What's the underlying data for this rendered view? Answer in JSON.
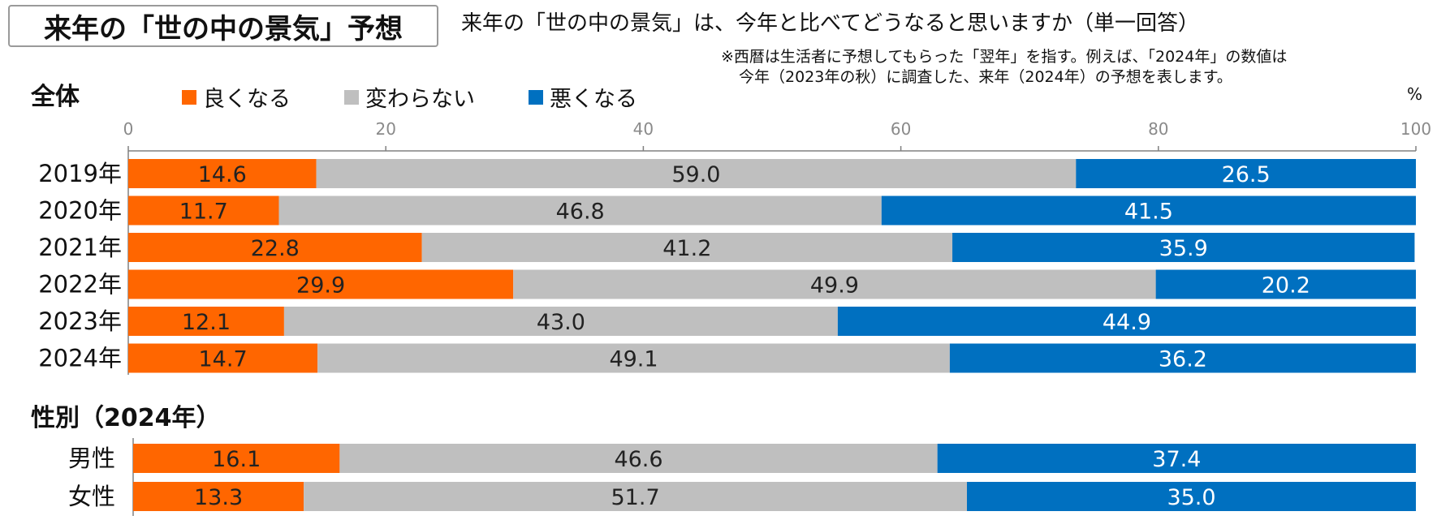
{
  "header": {
    "title": "来年の「世の中の景気」予想",
    "question": "来年の「世の中の景気」は、今年と比べてどうなると思いますか（単一回答）",
    "note_line1": "※西暦は生活者に予想してもらった「翌年」を指す。例えば、「2024年」の数値は",
    "note_line2": "今年（2023年の秋）に調査した、来年（2024年）の予想を表します。"
  },
  "sections": {
    "overall_label": "全体",
    "gender_label": "性別（2024年）"
  },
  "unit_label": "%",
  "colors": {
    "good": "#FF6600",
    "same": "#BFBFBF",
    "bad": "#0070C0",
    "axis": "#808080"
  },
  "chart_data": [
    {
      "type": "bar",
      "orientation": "horizontal",
      "stacked": true,
      "title": "全体",
      "xlim": [
        0,
        100
      ],
      "xticks": [
        0,
        20,
        40,
        60,
        80,
        100
      ],
      "xlabel": "%",
      "legend": [
        "良くなる",
        "変わらない",
        "悪くなる"
      ],
      "legend_position": "top",
      "categories": [
        "2019年",
        "2020年",
        "2021年",
        "2022年",
        "2023年",
        "2024年"
      ],
      "series": [
        {
          "name": "良くなる",
          "values": [
            14.6,
            11.7,
            22.8,
            29.9,
            12.1,
            14.7
          ]
        },
        {
          "name": "変わらない",
          "values": [
            59.0,
            46.8,
            41.2,
            49.9,
            43.0,
            49.1
          ]
        },
        {
          "name": "悪くなる",
          "values": [
            26.5,
            41.5,
            35.9,
            20.2,
            44.9,
            36.2
          ]
        }
      ]
    },
    {
      "type": "bar",
      "orientation": "horizontal",
      "stacked": true,
      "title": "性別（2024年）",
      "xlim": [
        0,
        100
      ],
      "categories": [
        "男性",
        "女性"
      ],
      "series": [
        {
          "name": "良くなる",
          "values": [
            16.1,
            13.3
          ]
        },
        {
          "name": "変わらない",
          "values": [
            46.6,
            51.7
          ]
        },
        {
          "name": "悪くなる",
          "values": [
            37.4,
            35.0
          ]
        }
      ]
    }
  ]
}
